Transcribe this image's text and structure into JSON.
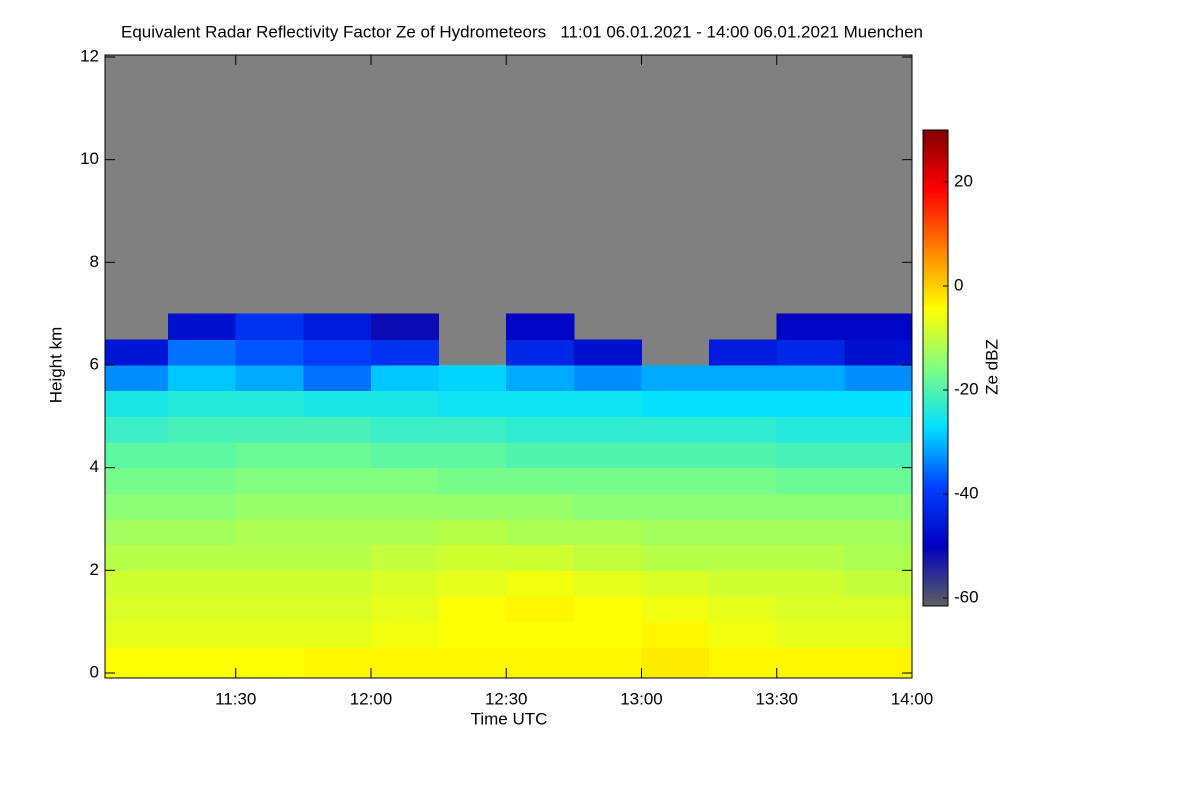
{
  "chart_data": {
    "type": "heatmap",
    "title": "Equivalent Radar Reflectivity Factor Ze of Hydrometeors   11:01 06.01.2021 - 14:00 06.01.2021 Muenchen",
    "xlabel": "Time UTC",
    "ylabel": "Height km",
    "colorbar_label": "Ze dBZ",
    "x": [
      11.125,
      11.375,
      11.625,
      11.875,
      12.125,
      12.375,
      12.625,
      12.875,
      13.125,
      13.375,
      13.625,
      13.875
    ],
    "y": [
      0.25,
      0.75,
      1.25,
      1.75,
      2.25,
      2.75,
      3.25,
      3.75,
      4.25,
      4.75,
      5.25,
      5.75,
      6.25,
      6.75
    ],
    "z": [
      [
        -4,
        -4,
        -4,
        -3,
        -3,
        -3,
        -3,
        -3,
        -2,
        -3,
        -3,
        -3
      ],
      [
        -6,
        -6,
        -6,
        -6,
        -5,
        -4,
        -4,
        -4,
        -3,
        -5,
        -6,
        -6
      ],
      [
        -7,
        -7,
        -7,
        -7,
        -6,
        -4,
        -3,
        -4,
        -5,
        -6,
        -7,
        -7
      ],
      [
        -8,
        -8,
        -8,
        -8,
        -7,
        -6,
        -5,
        -6,
        -7,
        -8,
        -8,
        -9
      ],
      [
        -10,
        -10,
        -10,
        -10,
        -9,
        -8,
        -8,
        -9,
        -10,
        -10,
        -10,
        -11
      ],
      [
        -12,
        -12,
        -11,
        -11,
        -11,
        -10,
        -11,
        -11,
        -12,
        -12,
        -12,
        -12
      ],
      [
        -14,
        -14,
        -13,
        -13,
        -13,
        -13,
        -13,
        -14,
        -14,
        -14,
        -14,
        -14
      ],
      [
        -16,
        -16,
        -15,
        -15,
        -15,
        -16,
        -16,
        -16,
        -16,
        -16,
        -17,
        -17
      ],
      [
        -18,
        -18,
        -17,
        -17,
        -18,
        -18,
        -19,
        -19,
        -19,
        -19,
        -20,
        -20
      ],
      [
        -21,
        -20,
        -20,
        -20,
        -21,
        -21,
        -22,
        -22,
        -22,
        -22,
        -23,
        -23
      ],
      [
        -24,
        -23,
        -23,
        -24,
        -24,
        -25,
        -25,
        -25,
        -26,
        -26,
        -26,
        -26
      ],
      [
        -32,
        -28,
        -30,
        -34,
        -28,
        -27,
        -30,
        -32,
        -30,
        -30,
        -30,
        -32
      ],
      [
        -45,
        -34,
        -36,
        -38,
        -40,
        null,
        -42,
        -46,
        null,
        -44,
        -42,
        -46
      ],
      [
        null,
        -46,
        -40,
        -44,
        -50,
        null,
        -48,
        null,
        null,
        null,
        -48,
        -48
      ]
    ],
    "xlim": [
      11.0167,
      14.0
    ],
    "xticks": [
      {
        "value": 11.5,
        "label": "11:30"
      },
      {
        "value": 12.0,
        "label": "12:00"
      },
      {
        "value": 12.5,
        "label": "12:30"
      },
      {
        "value": 13.0,
        "label": "13:00"
      },
      {
        "value": 13.5,
        "label": "13:30"
      },
      {
        "value": 14.0,
        "label": "14:00"
      }
    ],
    "ylim": [
      0,
      12
    ],
    "yticks": [
      0,
      2,
      4,
      6,
      8,
      10,
      12
    ],
    "zlim": [
      -60,
      30
    ],
    "zticks": [
      -60,
      -40,
      -20,
      0,
      20
    ],
    "colormap": [
      "#606060",
      "#0000c0",
      "#0040ff",
      "#00e0ff",
      "#80ff80",
      "#ffff00",
      "#ff8000",
      "#ff0000",
      "#800000"
    ],
    "missing_color": "#808080"
  }
}
